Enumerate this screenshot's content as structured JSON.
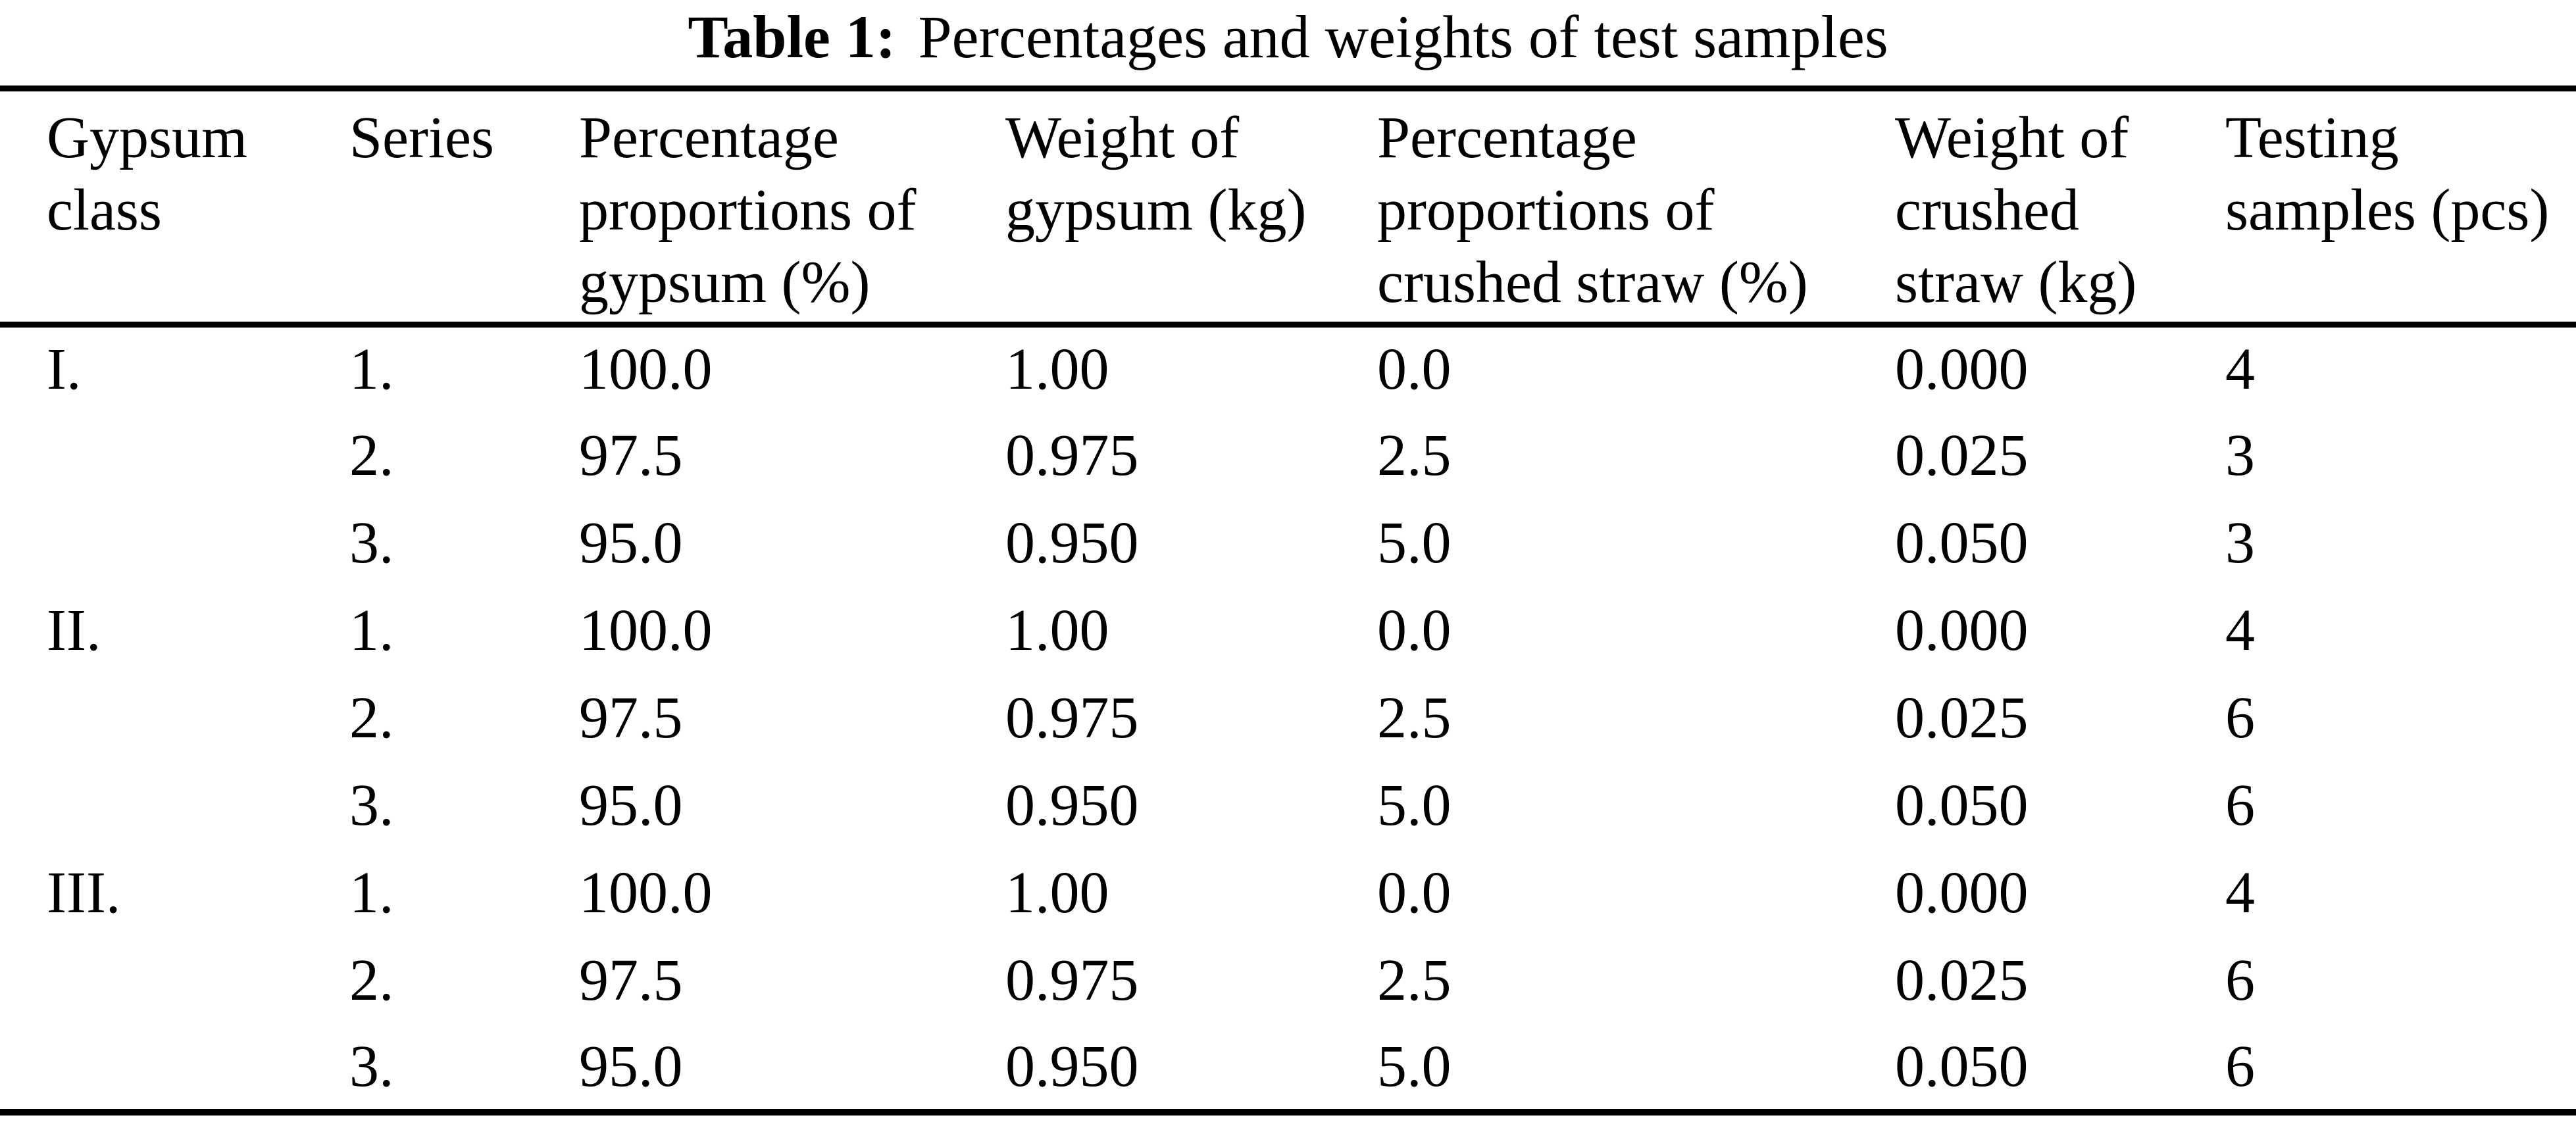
{
  "caption": {
    "label": "Table 1:",
    "text": "Percentages and weights of test samples"
  },
  "colors": {
    "text": "#000000",
    "background": "#ffffff",
    "rule": "#000000"
  },
  "table": {
    "columns": [
      "Gypsum class",
      "Series",
      "Percentage proportions of gypsum (%)",
      "Weight of gypsum (kg)",
      "Percentage proportions of crushed straw (%)",
      "Weight of crushed straw (kg)",
      "Testing samples (pcs)"
    ],
    "rows": [
      [
        "I.",
        "1.",
        "100.0",
        "1.00",
        "0.0",
        "0.000",
        "4"
      ],
      [
        "",
        "2.",
        "97.5",
        "0.975",
        "2.5",
        "0.025",
        "3"
      ],
      [
        "",
        "3.",
        "95.0",
        "0.950",
        "5.0",
        "0.050",
        "3"
      ],
      [
        "II.",
        "1.",
        "100.0",
        "1.00",
        "0.0",
        "0.000",
        "4"
      ],
      [
        "",
        "2.",
        "97.5",
        "0.975",
        "2.5",
        "0.025",
        "6"
      ],
      [
        "",
        "3.",
        "95.0",
        "0.950",
        "5.0",
        "0.050",
        "6"
      ],
      [
        "III.",
        "1.",
        "100.0",
        "1.00",
        "0.0",
        "0.000",
        "4"
      ],
      [
        "",
        "2.",
        "97.5",
        "0.975",
        "2.5",
        "0.025",
        "6"
      ],
      [
        "",
        "3.",
        "95.0",
        "0.950",
        "5.0",
        "0.050",
        "6"
      ]
    ]
  }
}
